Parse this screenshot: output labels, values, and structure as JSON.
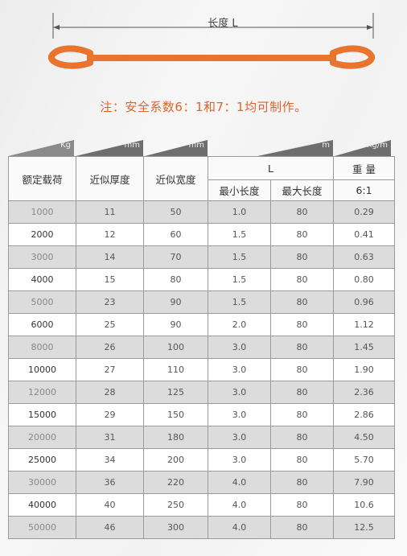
{
  "diagram": {
    "length_label": "长度 L"
  },
  "note": "注：安全系数6：1和7：1均可制作。",
  "units": [
    "Kg",
    "mm",
    "mm",
    "m",
    "Kg/m"
  ],
  "header": {
    "rated_load": "额定载荷",
    "thickness": "近似厚度",
    "width": "近似宽度",
    "L": "L",
    "min_length": "最小长度",
    "max_length": "最大长度",
    "weight": "重 量",
    "ratio": "6:1"
  },
  "rows": [
    [
      "1000",
      "11",
      "50",
      "1.0",
      "80",
      "0.29"
    ],
    [
      "2000",
      "12",
      "60",
      "1.5",
      "80",
      "0.41"
    ],
    [
      "3000",
      "14",
      "70",
      "1.5",
      "80",
      "0.63"
    ],
    [
      "4000",
      "15",
      "80",
      "1.5",
      "80",
      "0.80"
    ],
    [
      "5000",
      "23",
      "90",
      "1.5",
      "80",
      "0.96"
    ],
    [
      "6000",
      "25",
      "90",
      "2.0",
      "80",
      "1.12"
    ],
    [
      "8000",
      "26",
      "100",
      "3.0",
      "80",
      "1.45"
    ],
    [
      "10000",
      "27",
      "110",
      "3.0",
      "80",
      "1.90"
    ],
    [
      "12000",
      "28",
      "125",
      "3.0",
      "80",
      "2.36"
    ],
    [
      "15000",
      "29",
      "150",
      "3.0",
      "80",
      "2.86"
    ],
    [
      "20000",
      "31",
      "180",
      "3.0",
      "80",
      "4.50"
    ],
    [
      "25000",
      "34",
      "200",
      "3.0",
      "80",
      "5.70"
    ],
    [
      "30000",
      "36",
      "220",
      "4.0",
      "80",
      "7.90"
    ],
    [
      "40000",
      "40",
      "250",
      "4.0",
      "80",
      "10.6"
    ],
    [
      "50000",
      "46",
      "300",
      "4.0",
      "80",
      "12.5"
    ]
  ],
  "colors": {
    "sling_orange": "#e8742e",
    "note_orange": "#e0642a",
    "header_gray": "#7a7a7a"
  }
}
